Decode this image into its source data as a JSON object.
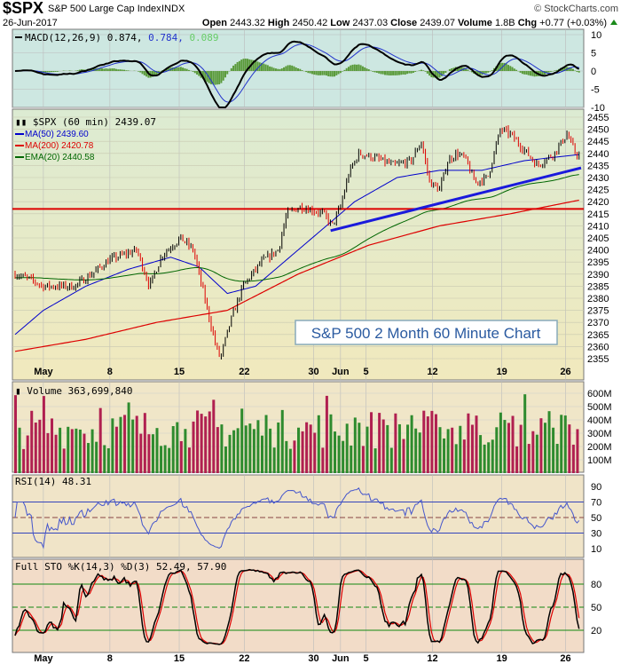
{
  "header": {
    "symbol": "$SPX",
    "name": "S&P 500 Large Cap Index",
    "exchange": "INDX",
    "copyright": "© StockCharts.com",
    "date": "26-Jun-2017",
    "open_label": "Open",
    "open": "2443.32",
    "high_label": "High",
    "high": "2450.42",
    "low_label": "Low",
    "low": "2437.03",
    "close_label": "Close",
    "close": "2439.07",
    "volume_label": "Volume",
    "volume": "1.8B",
    "chg_label": "Chg",
    "chg": "+0.77 (+0.03%)"
  },
  "colors": {
    "up": "#000000",
    "down": "#dd0000",
    "ma50": "#0000cc",
    "ma200": "#dd0000",
    "ema20": "#006600",
    "trend": "#1a1adc",
    "support": "#dd0000",
    "vol_up": "#2e8b2e",
    "vol_down": "#b02050"
  },
  "chart_data": {
    "type": "line",
    "title": "S&P 500 2 Month 60 Minute Chart",
    "x_unit": "trading days since start",
    "x_tick_labels": [
      {
        "day": 2,
        "label": "May"
      },
      {
        "day": 6.7,
        "label": "8"
      },
      {
        "day": 11.6,
        "label": "15"
      },
      {
        "day": 16.2,
        "label": "22"
      },
      {
        "day": 21.1,
        "label": "30"
      },
      {
        "day": 23.0,
        "label": "Jun"
      },
      {
        "day": 24.8,
        "label": "5"
      },
      {
        "day": 29.5,
        "label": "12"
      },
      {
        "day": 34.4,
        "label": "19"
      },
      {
        "day": 38.9,
        "label": "26"
      }
    ],
    "macd": {
      "legend": "MACD(12,26,9)",
      "macd": "0.874",
      "signal": "0.784",
      "hist": "0.089",
      "ylim": [
        -10,
        10
      ],
      "ticks": [
        "10",
        "5",
        "0",
        "-5",
        "-10"
      ]
    },
    "price": {
      "legend": "$SPX (60 min) 2439.07",
      "ylim": [
        2350,
        2458
      ],
      "ticks": [
        "2455",
        "2450",
        "2445",
        "2440",
        "2435",
        "2430",
        "2425",
        "2420",
        "2415",
        "2410",
        "2405",
        "2400",
        "2395",
        "2390",
        "2385",
        "2380",
        "2375",
        "2370",
        "2365",
        "2360",
        "2355"
      ],
      "close_keypoints": [
        [
          0,
          2390
        ],
        [
          1,
          2388
        ],
        [
          2,
          2385
        ],
        [
          4.2,
          2385
        ],
        [
          5.4,
          2390
        ],
        [
          6.7,
          2396
        ],
        [
          8.6,
          2400
        ],
        [
          9.5,
          2385
        ],
        [
          10.4,
          2398
        ],
        [
          11.7,
          2405
        ],
        [
          12.6,
          2400
        ],
        [
          13.6,
          2375
        ],
        [
          14.2,
          2360
        ],
        [
          14.5,
          2355
        ],
        [
          15.2,
          2370
        ],
        [
          16.1,
          2385
        ],
        [
          17.4,
          2395
        ],
        [
          18.6,
          2400
        ],
        [
          19.2,
          2415
        ],
        [
          20.2,
          2418
        ],
        [
          21.8,
          2415
        ],
        [
          22.4,
          2410
        ],
        [
          23,
          2418
        ],
        [
          23.6,
          2432
        ],
        [
          24.3,
          2440
        ],
        [
          25.5,
          2438
        ],
        [
          26.8,
          2435
        ],
        [
          28,
          2437
        ],
        [
          28.7,
          2445
        ],
        [
          29.3,
          2428
        ],
        [
          30,
          2425
        ],
        [
          30.6,
          2437
        ],
        [
          31.2,
          2440
        ],
        [
          31.8,
          2438
        ],
        [
          32.5,
          2428
        ],
        [
          33.4,
          2430
        ],
        [
          34.3,
          2450
        ],
        [
          35,
          2448
        ],
        [
          36.2,
          2440
        ],
        [
          36.9,
          2435
        ],
        [
          38.1,
          2440
        ],
        [
          39,
          2448
        ],
        [
          39.6,
          2440
        ],
        [
          40,
          2439
        ]
      ],
      "ma50": {
        "legend": "MA(50) 2439.60",
        "keypoints": [
          [
            0,
            2365
          ],
          [
            2,
            2375
          ],
          [
            5,
            2385
          ],
          [
            8,
            2392
          ],
          [
            11,
            2397
          ],
          [
            13,
            2393
          ],
          [
            15,
            2382
          ],
          [
            17,
            2385
          ],
          [
            20,
            2400
          ],
          [
            22,
            2410
          ],
          [
            24,
            2420
          ],
          [
            27,
            2430
          ],
          [
            30,
            2433
          ],
          [
            33,
            2433
          ],
          [
            36,
            2437
          ],
          [
            40,
            2439.6
          ]
        ]
      },
      "ma200": {
        "legend": "MA(200) 2420.78",
        "keypoints": [
          [
            0,
            2358
          ],
          [
            5,
            2363
          ],
          [
            10,
            2370
          ],
          [
            15,
            2375
          ],
          [
            20,
            2390
          ],
          [
            25,
            2402
          ],
          [
            30,
            2410
          ],
          [
            35,
            2415
          ],
          [
            40,
            2420.8
          ]
        ]
      },
      "ema20": {
        "legend": "EMA(20) 2440.58"
      },
      "support_level": 2417,
      "trendline": [
        [
          22.3,
          2408
        ],
        [
          40,
          2434
        ]
      ]
    },
    "volume": {
      "legend": "Volume 363,699,840",
      "ylim": [
        0,
        650
      ],
      "unit": "M",
      "ticks": [
        "600M",
        "500M",
        "400M",
        "300M",
        "200M",
        "100M"
      ]
    },
    "rsi": {
      "legend": "RSI(14) 48.31",
      "ticks": [
        "90",
        "70",
        "50",
        "30",
        "10"
      ],
      "levels": [
        70,
        30
      ]
    },
    "sto": {
      "legend": "Full STO %K(14,3) %D(3) 52.49, 57.90",
      "ticks": [
        "80",
        "50",
        "20"
      ],
      "levels": [
        80,
        20
      ]
    }
  }
}
